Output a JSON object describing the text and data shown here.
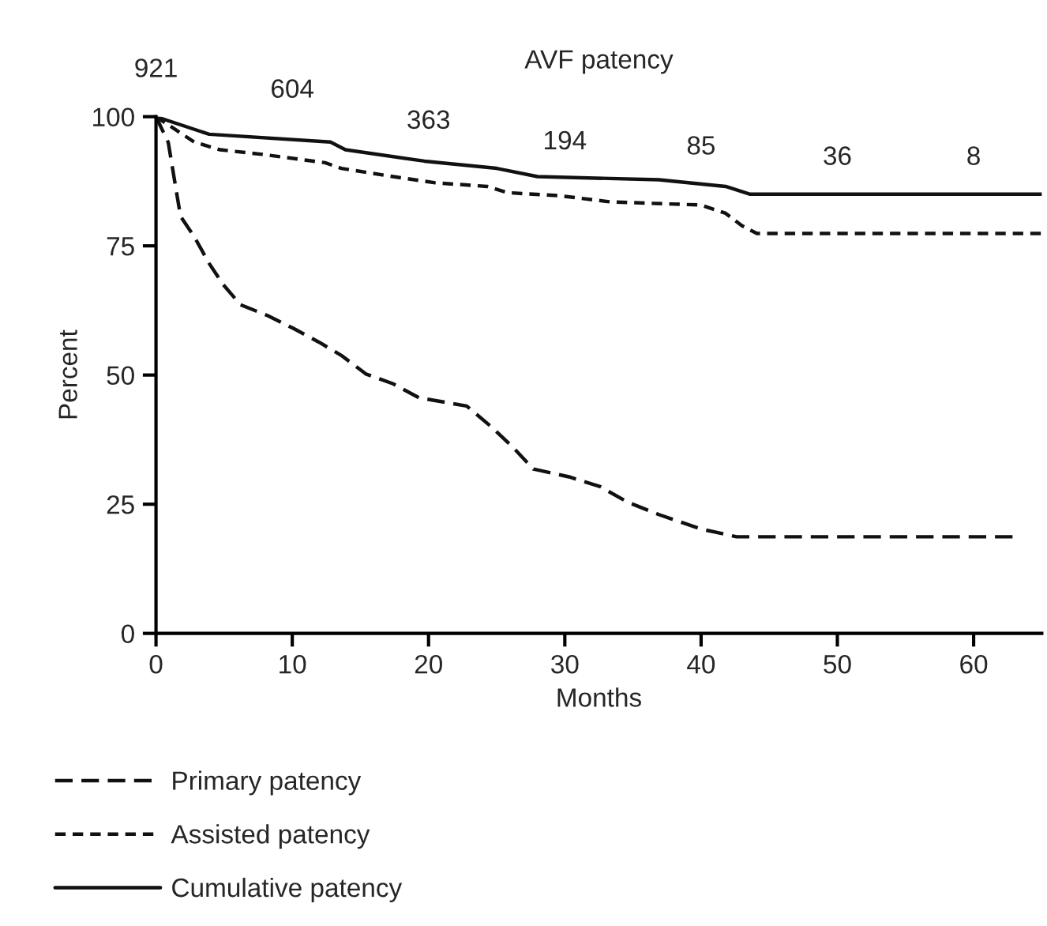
{
  "chart_data": {
    "type": "line",
    "title": "AVF patency",
    "xlabel": "Months",
    "ylabel": "Percent",
    "xlim": [
      0,
      65
    ],
    "xticks": [
      0,
      10,
      20,
      30,
      40,
      50,
      60
    ],
    "ylim": [
      0,
      100
    ],
    "yticks": [
      0,
      25,
      50,
      75,
      100
    ],
    "grid": false,
    "legend": "bottom left",
    "marker": "none",
    "series": [
      {
        "name": "Primary patency",
        "color": "#111111",
        "line_style": "dashed",
        "x": [
          0,
          0.9,
          1.8,
          2.8,
          3.9,
          4.9,
          6.2,
          8.2,
          10.1,
          12,
          13.6,
          15.4,
          17.4,
          19.3,
          22.8,
          24.6,
          26.2,
          27.7,
          30.3,
          32.6,
          34.6,
          36.9,
          40,
          42.6,
          63
        ],
        "values": [
          100,
          95,
          80.7,
          76.8,
          71.6,
          67.6,
          63.6,
          61.5,
          59,
          56.3,
          53.8,
          50.2,
          48.3,
          45.6,
          44,
          40,
          36,
          31.8,
          30.3,
          28.4,
          25.4,
          23,
          20.2,
          18.7,
          18.7
        ]
      },
      {
        "name": "Assisted patency",
        "color": "#111111",
        "line_style": "dotted",
        "x": [
          0,
          2.8,
          4.7,
          7.8,
          12.4,
          13.6,
          17.4,
          20.5,
          24.3,
          25.8,
          29.6,
          33.4,
          40,
          41.8,
          43,
          44.1,
          65
        ],
        "values": [
          100,
          95.1,
          93.6,
          92.7,
          91.1,
          90,
          88.4,
          87.2,
          86.5,
          85.3,
          84.7,
          83.5,
          82.9,
          81.3,
          78.9,
          77.4,
          77.4
        ]
      },
      {
        "name": "Cumulative patency",
        "color": "#111111",
        "line_style": "solid",
        "x": [
          0,
          3.9,
          12.8,
          13.9,
          19.7,
          25,
          28,
          36.9,
          41.8,
          43.6,
          65
        ],
        "values": [
          100,
          96.6,
          95.1,
          93.6,
          91.4,
          90,
          88.4,
          87.8,
          86.5,
          85,
          85
        ]
      }
    ],
    "annotations": [
      "921",
      "604",
      "363",
      "194",
      "85",
      "36",
      "8"
    ]
  }
}
